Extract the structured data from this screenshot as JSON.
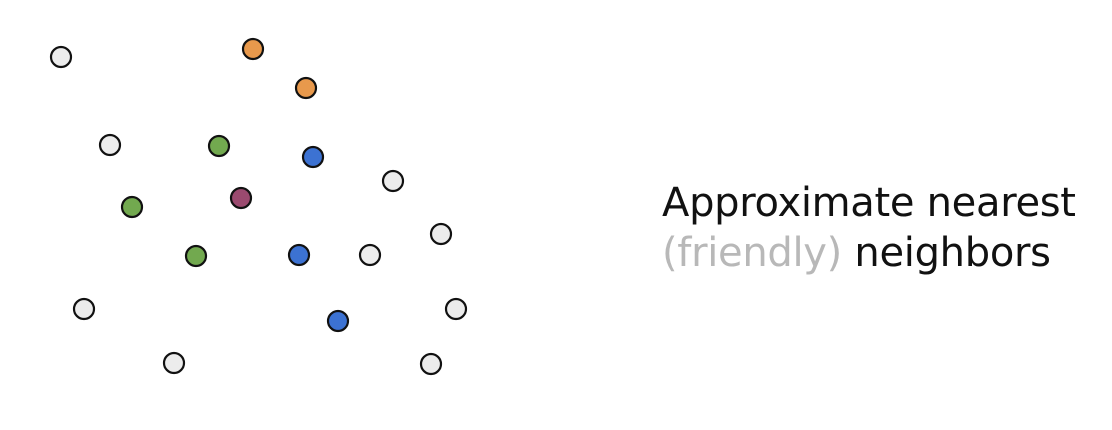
{
  "colors": {
    "default": "#ececec",
    "orange": "#e8994c",
    "green": "#72a94f",
    "blue": "#3c72d2",
    "purple": "#9b4a6f",
    "stroke": "#111111"
  },
  "caption": {
    "line1": "Approximate nearest",
    "line2_muted": "(friendly)",
    "line2_main": "neighbors"
  }
}
